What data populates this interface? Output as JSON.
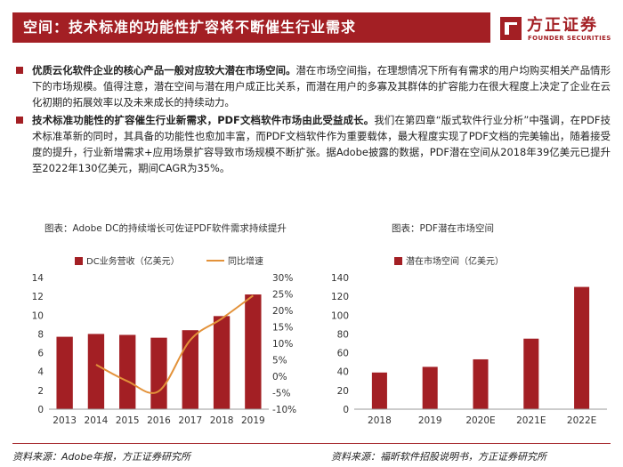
{
  "header": {
    "title": "空间：技术标准的功能性扩容将不断催生行业需求"
  },
  "logo": {
    "name_cn": "方正证券",
    "name_en": "FOUNDER SECURITIES",
    "colors": {
      "brand": "#a31f24"
    }
  },
  "paragraphs": [
    {
      "lead": "优质云化软件企业的核心产品一般对应较大潜在市场空间。",
      "body": "潜在市场空间指，在理想情况下所有有需求的用户均购买相关产品情形下的市场规模。值得注意，潜在空间与潜在用户成正比关系，而潜在用户的多寡及其群体的扩容能力在很大程度上决定了企业在云化初期的拓展效率以及未来成长的持续动力。"
    },
    {
      "lead": "技术标准功能性的扩容催生行业新需求，PDF文档软件市场由此受益成长。",
      "body": "我们在第四章“版式软件行业分析”中强调，在PDF技术标准革新的同时，其具备的功能性也愈加丰富，而PDF文档软件作为重要载体，最大程度实现了PDF文档的完美输出，随着接受度的提升，行业新增需求+应用场景扩容导致市场规模不断扩张。据Adobe披露的数据，PDF潜在空间从2018年39亿美元已提升至2022年130亿美元，期间CAGR为35%。"
    }
  ],
  "figures": {
    "left_title": "图表：Adobe DC的持续增长可佐证PDF软件需求持续提升",
    "right_title": "图表：PDF潜在市场空间",
    "left_source": "资料来源：Adobe年报，方正证券研究所",
    "right_source": "资料来源：福昕软件招股说明书，方正证券研究所"
  },
  "chart_data": [
    {
      "type": "bar",
      "categories": [
        "2013",
        "2014",
        "2015",
        "2016",
        "2017",
        "2018",
        "2019"
      ],
      "series": [
        {
          "name": "DC业务营收（亿美元）",
          "type": "bar",
          "axis": "left",
          "values": [
            7.7,
            8.0,
            7.9,
            7.6,
            8.4,
            9.9,
            12.2
          ]
        },
        {
          "name": "同比增速",
          "type": "line",
          "axis": "right",
          "values": [
            null,
            3.5,
            -1.5,
            -4.5,
            11.0,
            17.5,
            24.5
          ]
        }
      ],
      "ylim": [
        0,
        14
      ],
      "yticks": [
        "0",
        "2",
        "4",
        "6",
        "8",
        "10",
        "12",
        "14"
      ],
      "y2lim": [
        -10,
        30
      ],
      "y2ticks": [
        "-10%",
        "-5%",
        "0%",
        "5%",
        "10%",
        "15%",
        "20%",
        "25%",
        "30%"
      ],
      "legend_position": "top",
      "colors": {
        "bar": "#a31f24",
        "line": "#e3923a"
      }
    },
    {
      "type": "bar",
      "categories": [
        "2018",
        "2019",
        "2020E",
        "2021E",
        "2022E"
      ],
      "series": [
        {
          "name": "潜在市场空间（亿美元）",
          "values": [
            39,
            45,
            53,
            75,
            130
          ]
        }
      ],
      "ylim": [
        0,
        140
      ],
      "yticks": [
        "0",
        "20",
        "40",
        "60",
        "80",
        "100",
        "120",
        "140"
      ],
      "legend_position": "top",
      "colors": {
        "bar": "#a31f24"
      }
    }
  ]
}
